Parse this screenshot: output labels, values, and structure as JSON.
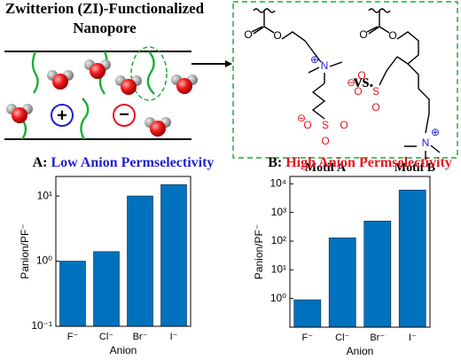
{
  "diagram": {
    "title": [
      "Zwitterion (ZI)-Functionalized",
      "Nanopore"
    ],
    "ions": [
      "+",
      "−"
    ],
    "comparison": "vs.",
    "motifs": [
      {
        "name": "Motif A",
        "atoms": [
          "O",
          "O",
          "N",
          "⊕",
          "S",
          "O",
          "O",
          "O",
          "⊖"
        ]
      },
      {
        "name": "Motif B",
        "atoms": [
          "O",
          "O",
          "S",
          "O",
          "O",
          "O",
          "⊖",
          "N",
          "⊕"
        ]
      }
    ]
  },
  "chart_data": [
    {
      "type": "bar",
      "panel": "A:",
      "title": "Low Anion Permselectivity",
      "title_color": "#1f1fd6",
      "categories": [
        "F⁻",
        "Cl⁻",
        "Br⁻",
        "I⁻"
      ],
      "values": [
        1,
        1.4,
        10,
        15
      ],
      "color": "#0072bd",
      "xlabel": "Anion",
      "ylabel": "Panion/PF⁻",
      "log_scale": true,
      "ylim": [
        0.1,
        20
      ],
      "yticks": [
        {
          "value": 0.1,
          "label": "10⁻¹"
        },
        {
          "value": 1,
          "label": "10⁰"
        },
        {
          "value": 10,
          "label": "10¹"
        }
      ]
    },
    {
      "type": "bar",
      "panel": "B:",
      "title": "High Anion Permselectivity",
      "title_color": "#e8141e",
      "categories": [
        "F⁻",
        "Cl⁻",
        "Br⁻",
        "I⁻"
      ],
      "values": [
        0.9,
        130,
        500,
        6000
      ],
      "color": "#0072bd",
      "xlabel": "Anion",
      "ylabel": "Panion/PF⁻",
      "log_scale": true,
      "ylim": [
        0.1,
        18000
      ],
      "yticks": [
        {
          "value": 1,
          "label": "10⁰"
        },
        {
          "value": 10,
          "label": "10¹"
        },
        {
          "value": 100,
          "label": "10²"
        },
        {
          "value": 1000,
          "label": "10³"
        },
        {
          "value": 10000,
          "label": "10⁴"
        }
      ]
    }
  ]
}
